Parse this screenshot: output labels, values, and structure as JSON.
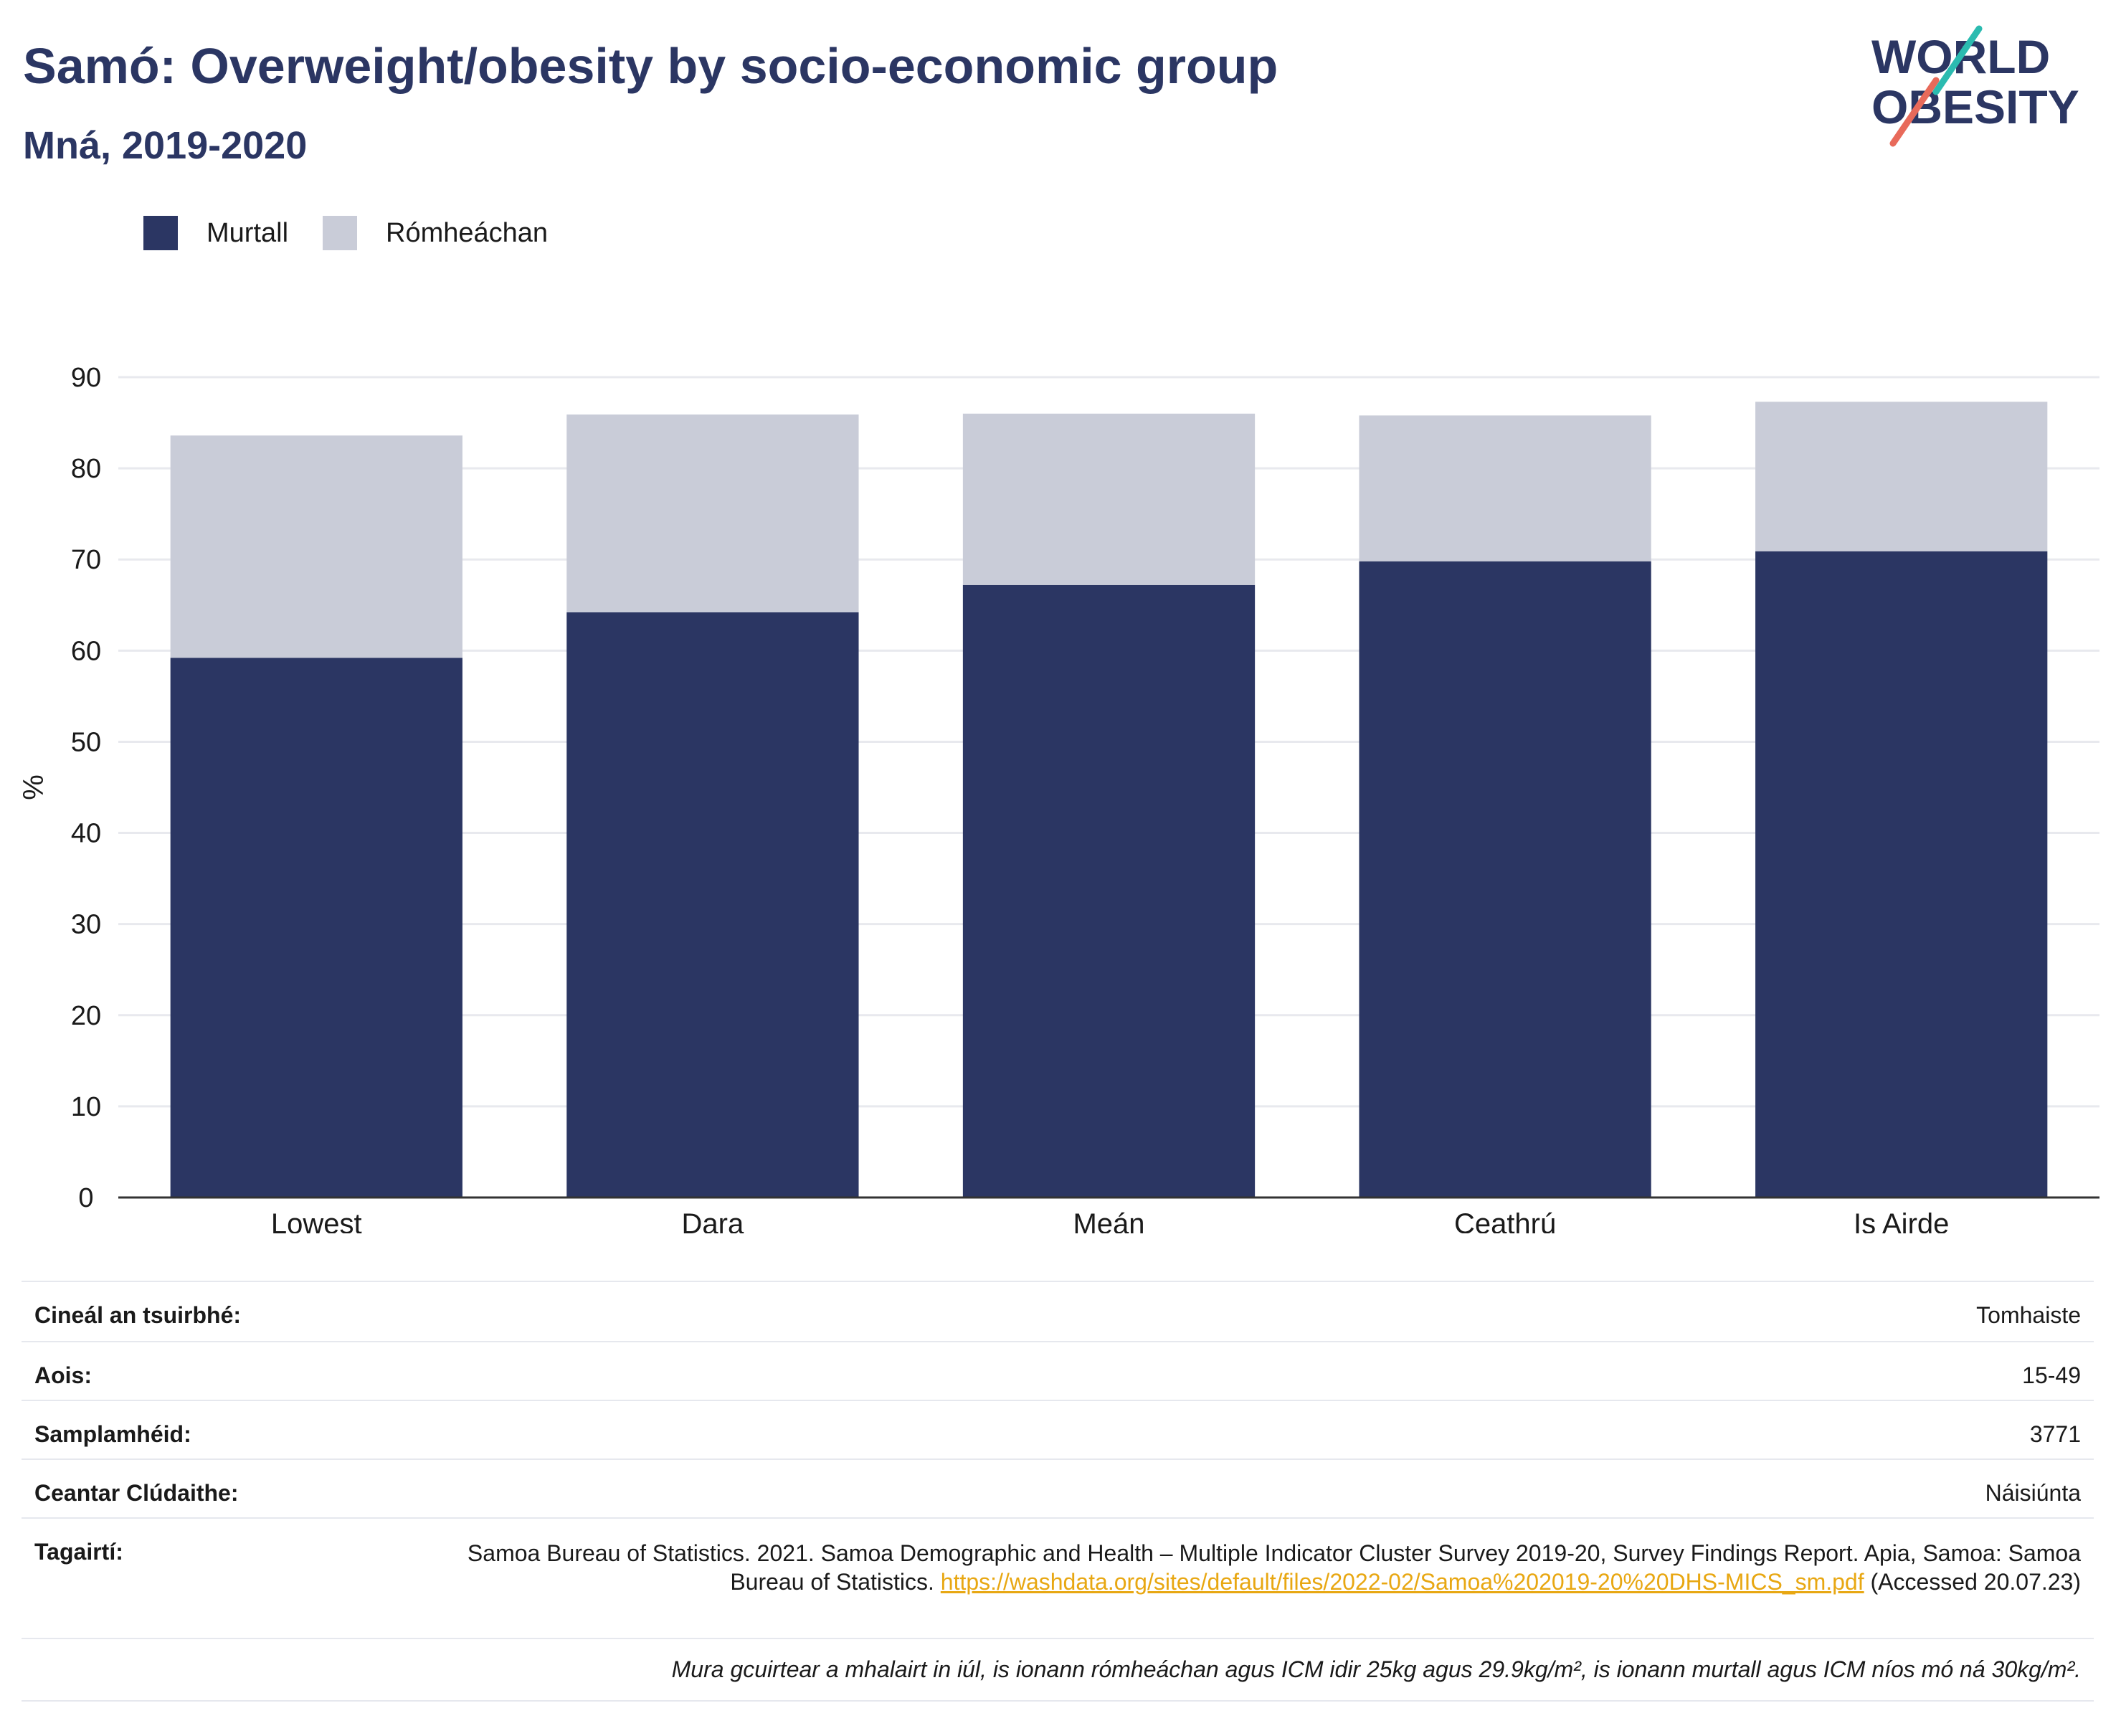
{
  "header": {
    "title": "Samó: Overweight/obesity by socio-economic group",
    "subtitle": "Mná, 2019-2020"
  },
  "logo": {
    "line1": "WORLD",
    "line2": "OBESITY"
  },
  "legend": [
    {
      "label": "Murtall",
      "color": "#2b3663"
    },
    {
      "label": "Rómheáchan",
      "color": "#c9ccd8"
    }
  ],
  "chart_data": {
    "type": "bar",
    "stacked": true,
    "categories": [
      "Lowest",
      "Dara",
      "Meán",
      "Ceathrú",
      "Is Airde"
    ],
    "series": [
      {
        "name": "Murtall",
        "color": "#2b3663",
        "values": [
          59.2,
          64.2,
          67.2,
          69.8,
          70.9
        ]
      },
      {
        "name": "Rómheáchan",
        "color": "#c9ccd8",
        "values": [
          24.4,
          21.7,
          18.8,
          16.0,
          16.4
        ]
      }
    ],
    "ylabel": "%",
    "ylim": [
      0,
      90
    ],
    "yticks": [
      0,
      10,
      20,
      30,
      40,
      50,
      60,
      70,
      80,
      90
    ],
    "grid": true,
    "legend_position": "top-left"
  },
  "info": {
    "rows": [
      {
        "label": "Cineál an tsuirbhé:",
        "value": "Tomhaiste"
      },
      {
        "label": "Aois:",
        "value": "15-49"
      },
      {
        "label": "Samplamhéid:",
        "value": "3771"
      },
      {
        "label": "Ceantar Clúdaithe:",
        "value": "Náisiúnta"
      }
    ],
    "reference": {
      "label": "Tagairtí:",
      "text": "Samoa Bureau of Statistics. 2021. Samoa Demographic and Health – Multiple Indicator Cluster Survey 2019-20, Survey Findings Report. Apia, Samoa: Samoa Bureau of Statistics. ",
      "link": "https://washdata.org/sites/default/files/2022-02/Samoa%202019-20%20DHS-MICS_sm.pdf",
      "accessed": " (Accessed 20.07.23)"
    },
    "note": "Mura gcuirtear a mhalairt in iúl, is ionann rómheáchan agus ICM idir 25kg agus 29.9kg/m², is ionann murtall agus ICM níos mó ná 30kg/m²."
  }
}
